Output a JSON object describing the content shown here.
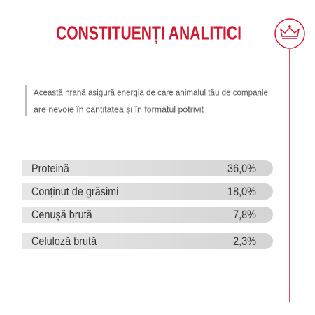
{
  "header": {
    "title": "CONSTITUENȚI ANALITICI"
  },
  "description": {
    "lines": [
      "Această hrană asigură energia de care animalul tău de companie",
      "are nevoie în cantitatea și în formatul potrivit"
    ]
  },
  "table": {
    "rows": [
      [
        "Proteină",
        "36,0%"
      ],
      [
        "Conținut de grăsimi",
        "18,0%"
      ],
      [
        "Cenușă brută",
        "7,8%"
      ],
      [
        "Celuloză brută",
        "2,3%"
      ]
    ]
  }
}
